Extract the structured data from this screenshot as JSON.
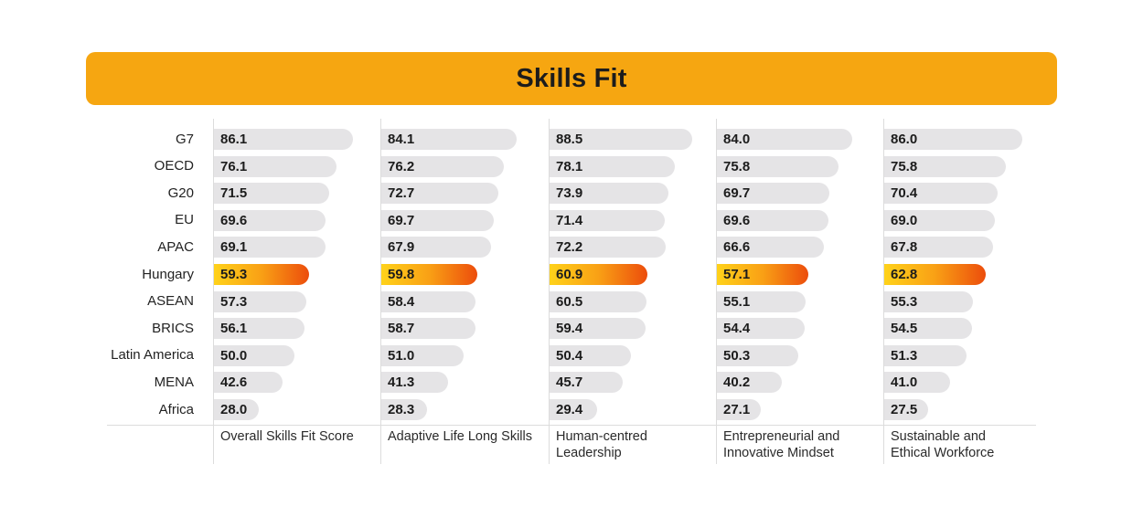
{
  "chart_data": {
    "type": "bar",
    "orientation": "horizontal",
    "title": "Skills Fit",
    "categories": [
      "G7",
      "OECD",
      "G20",
      "EU",
      "APAC",
      "Hungary",
      "ASEAN",
      "BRICS",
      "Latin America",
      "MENA",
      "Africa"
    ],
    "highlight_category": "Hungary",
    "series": [
      {
        "name": "Overall Skills Fit Score",
        "values": [
          86.1,
          76.1,
          71.5,
          69.6,
          69.1,
          59.3,
          57.3,
          56.1,
          50.0,
          42.6,
          28.0
        ]
      },
      {
        "name": "Adaptive Life Long Skills",
        "values": [
          84.1,
          76.2,
          72.7,
          69.7,
          67.9,
          59.8,
          58.4,
          58.7,
          51.0,
          41.3,
          28.3
        ]
      },
      {
        "name": "Human-centred Leadership",
        "values": [
          88.5,
          78.1,
          73.9,
          71.4,
          72.2,
          60.9,
          60.5,
          59.4,
          50.4,
          45.7,
          29.4
        ]
      },
      {
        "name": "Entrepreneurial and Innovative Mindset",
        "values": [
          84.0,
          75.8,
          69.7,
          69.6,
          66.6,
          57.1,
          55.1,
          54.4,
          50.3,
          40.2,
          27.1
        ]
      },
      {
        "name": "Sustainable and Ethical Workforce",
        "values": [
          86.0,
          75.8,
          70.4,
          69.0,
          67.8,
          62.8,
          55.3,
          54.5,
          51.3,
          41.0,
          27.5
        ]
      }
    ],
    "legend": "none",
    "grid": false,
    "colors": {
      "title_bar": "#f6a611",
      "bar": "#e5e4e6",
      "highlight_start": "#ffd21a",
      "highlight_end": "#ec4d0c"
    }
  }
}
